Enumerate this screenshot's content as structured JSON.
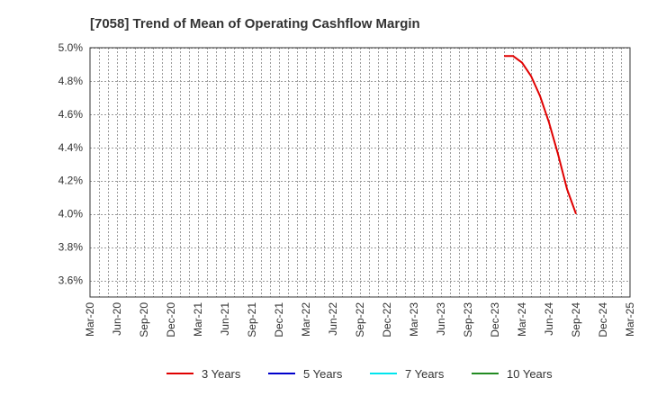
{
  "chart_data": {
    "type": "line",
    "title": "[7058]  Trend of Mean of Operating Cashflow Margin",
    "xlabel": "",
    "ylabel": "",
    "x_tick_labels": [
      "Mar-20",
      "Jun-20",
      "Sep-20",
      "Dec-20",
      "Mar-21",
      "Jun-21",
      "Sep-21",
      "Dec-21",
      "Mar-22",
      "Jun-22",
      "Sep-22",
      "Dec-22",
      "Mar-23",
      "Jun-23",
      "Sep-23",
      "Dec-23",
      "Mar-24",
      "Jun-24",
      "Sep-24",
      "Dec-24",
      "Mar-25"
    ],
    "xlim": [
      "2020-03",
      "2025-03"
    ],
    "y_tick_labels": [
      "5.0%",
      "4.8%",
      "4.6%",
      "4.4%",
      "4.2%",
      "4.0%",
      "3.8%",
      "3.6%"
    ],
    "y_ticks": [
      5.0,
      4.8,
      4.6,
      4.4,
      4.2,
      4.0,
      3.8,
      3.6
    ],
    "ylim": [
      3.5,
      5.0
    ],
    "grid": true,
    "legend_position": "bottom",
    "series": [
      {
        "name": "3 Years",
        "color": "#e00000",
        "points": [
          {
            "x": "2024-01",
            "y": 4.95
          },
          {
            "x": "2024-02",
            "y": 4.95
          },
          {
            "x": "2024-03",
            "y": 4.91
          },
          {
            "x": "2024-04",
            "y": 4.83
          },
          {
            "x": "2024-05",
            "y": 4.71
          },
          {
            "x": "2024-06",
            "y": 4.55
          },
          {
            "x": "2024-07",
            "y": 4.36
          },
          {
            "x": "2024-08",
            "y": 4.15
          },
          {
            "x": "2024-09",
            "y": 4.0
          }
        ]
      },
      {
        "name": "5 Years",
        "color": "#0000cc",
        "points": []
      },
      {
        "name": "7 Years",
        "color": "#00e5ee",
        "points": []
      },
      {
        "name": "10 Years",
        "color": "#228b22",
        "points": []
      }
    ]
  }
}
